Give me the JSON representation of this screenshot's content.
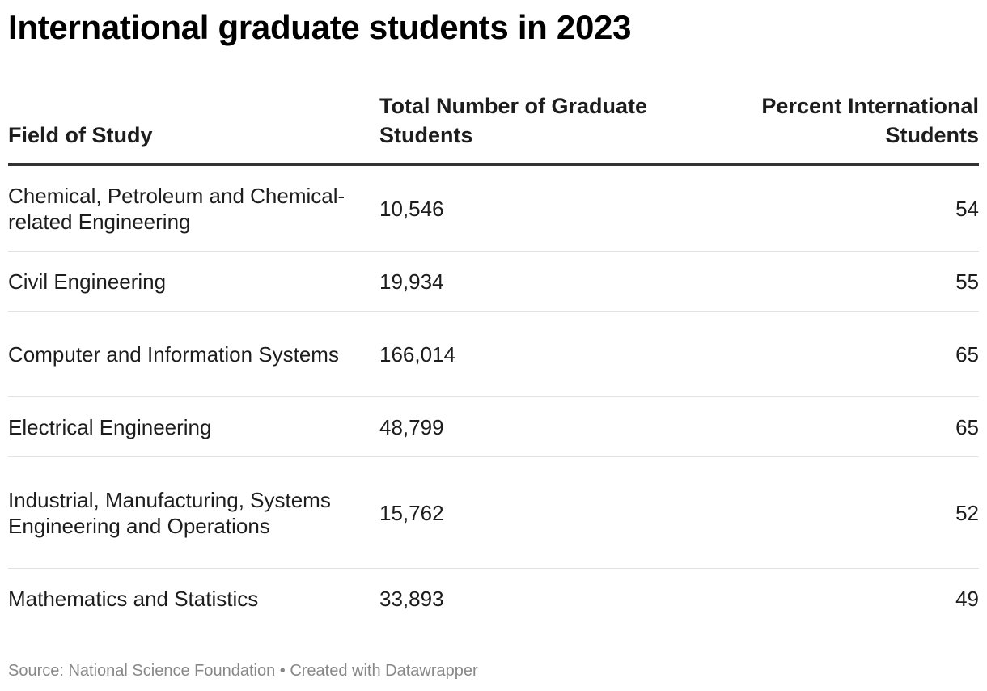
{
  "chart_data": {
    "type": "table",
    "title": "International graduate students in 2023",
    "columns": [
      "Field of Study",
      "Total Number of Graduate Students",
      "Percent International Students"
    ],
    "rows": [
      {
        "field": "Chemical, Petroleum and Chemical-related Engineering",
        "total": "10,546",
        "percent": "54"
      },
      {
        "field": "Civil Engineering",
        "total": "19,934",
        "percent": "55"
      },
      {
        "field": "Computer and Information Systems",
        "total": "166,014",
        "percent": "65"
      },
      {
        "field": "Electrical Engineering",
        "total": "48,799",
        "percent": "65"
      },
      {
        "field": "Industrial, Manufacturing, Systems Engineering and Operations",
        "total": "15,762",
        "percent": "52"
      },
      {
        "field": "Mathematics and Statistics",
        "total": "33,893",
        "percent": "49"
      }
    ],
    "source": "Source: National Science Foundation • Created with Datawrapper"
  }
}
